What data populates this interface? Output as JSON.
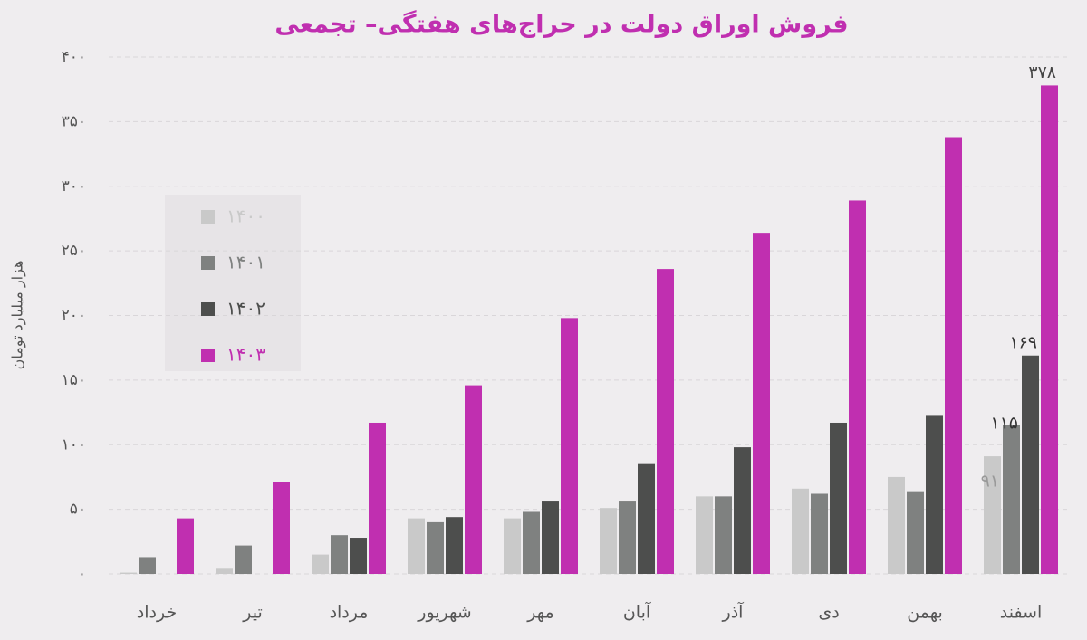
{
  "chart_data": {
    "type": "bar",
    "title": "فروش اوراق دولت در حراج‌های هفتگی– تجمعی",
    "y_label": "هزار میلیارد تومان",
    "categories": [
      "خرداد",
      "تیر",
      "مرداد",
      "شهریور",
      "مهر",
      "آبان",
      "آذر",
      "دی",
      "بهمن",
      "اسفند"
    ],
    "series": [
      {
        "name": "۱۴۰۰",
        "color": "#c9c9c9",
        "values": [
          1,
          4,
          15,
          43,
          43,
          51,
          60,
          66,
          75,
          91
        ],
        "value_labels": [
          null,
          null,
          null,
          null,
          null,
          null,
          null,
          null,
          null,
          "۹۱"
        ]
      },
      {
        "name": "۱۴۰۱",
        "color": "#7f8180",
        "values": [
          13,
          22,
          30,
          40,
          48,
          56,
          60,
          62,
          64,
          115
        ],
        "value_labels": [
          null,
          null,
          null,
          null,
          null,
          null,
          null,
          null,
          null,
          "۱۱۵"
        ]
      },
      {
        "name": "۱۴۰۲",
        "color": "#4d4e4d",
        "values": [
          null,
          null,
          28,
          44,
          56,
          85,
          98,
          117,
          123,
          169
        ],
        "value_labels": [
          null,
          null,
          null,
          null,
          null,
          null,
          null,
          null,
          null,
          "۱۶۹"
        ]
      },
      {
        "name": "۱۴۰۳",
        "color": "#c02fb0",
        "values": [
          43,
          71,
          117,
          146,
          198,
          236,
          264,
          289,
          338,
          378
        ],
        "value_labels": [
          null,
          null,
          null,
          null,
          null,
          null,
          null,
          null,
          null,
          "۳۷۸"
        ]
      }
    ],
    "ylim": [
      0,
      400
    ],
    "yticks": [
      {
        "value": 0,
        "label": "۰"
      },
      {
        "value": 50,
        "label": "۵۰"
      },
      {
        "value": 100,
        "label": "۱۰۰"
      },
      {
        "value": 150,
        "label": "۱۵۰"
      },
      {
        "value": 200,
        "label": "۲۰۰"
      },
      {
        "value": 250,
        "label": "۲۵۰"
      },
      {
        "value": 300,
        "label": "۳۰۰"
      },
      {
        "value": 350,
        "label": "۳۵۰"
      },
      {
        "value": 400,
        "label": "۴۰۰"
      }
    ],
    "grid": true,
    "legend": "upper left"
  }
}
